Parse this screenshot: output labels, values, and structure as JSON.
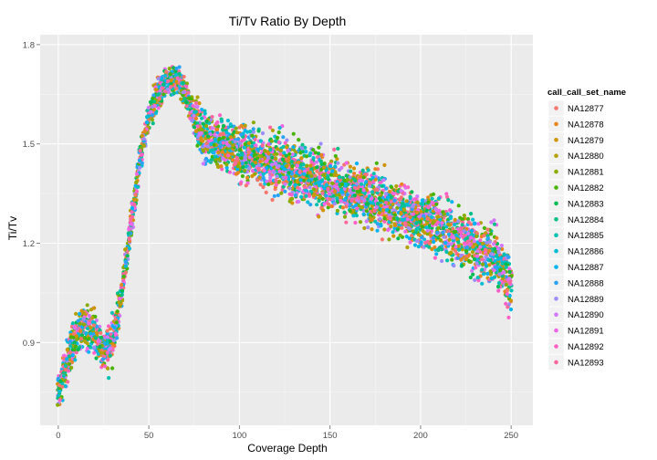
{
  "chart_data": {
    "type": "scatter",
    "title": "Ti/Tv Ratio By Depth",
    "xlabel": "Coverage Depth",
    "ylabel": "Ti/Tv",
    "xlim": [
      -10,
      262
    ],
    "ylim": [
      0.65,
      1.83
    ],
    "xticks": [
      0,
      50,
      100,
      150,
      200,
      250
    ],
    "xtick_labels": [
      "0",
      "50",
      "100",
      "150",
      "200",
      "250"
    ],
    "yticks": [
      0.9,
      1.2,
      1.5,
      1.8
    ],
    "ytick_labels": [
      "0.9",
      "1.2",
      "1.5",
      "1.8"
    ],
    "grid": true,
    "legend_position": "right",
    "legend_title": "call_call_set_name",
    "series": [
      {
        "name": "NA12877",
        "color": "#F8766D"
      },
      {
        "name": "NA12878",
        "color": "#E7851E"
      },
      {
        "name": "NA12879",
        "color": "#D09400"
      },
      {
        "name": "NA12880",
        "color": "#B2A100"
      },
      {
        "name": "NA12881",
        "color": "#89AC00"
      },
      {
        "name": "NA12882",
        "color": "#45B500"
      },
      {
        "name": "NA12883",
        "color": "#00BC51"
      },
      {
        "name": "NA12884",
        "color": "#00C087"
      },
      {
        "name": "NA12885",
        "color": "#00C0B2"
      },
      {
        "name": "NA12886",
        "color": "#00BCD6"
      },
      {
        "name": "NA12887",
        "color": "#00B3F2"
      },
      {
        "name": "NA12888",
        "color": "#29A3FF"
      },
      {
        "name": "NA12889",
        "color": "#9C8DFF"
      },
      {
        "name": "NA12890",
        "color": "#D277FF"
      },
      {
        "name": "NA12891",
        "color": "#F166E8"
      },
      {
        "name": "NA12892",
        "color": "#FF61C7"
      },
      {
        "name": "NA12893",
        "color": "#FF689E"
      }
    ],
    "trend": {
      "x": [
        0,
        5,
        10,
        15,
        20,
        25,
        30,
        35,
        40,
        45,
        50,
        55,
        60,
        65,
        70,
        75,
        80,
        90,
        100,
        125,
        150,
        175,
        200,
        225,
        240,
        250
      ],
      "y": [
        0.75,
        0.85,
        0.92,
        0.95,
        0.93,
        0.88,
        0.9,
        1.05,
        1.25,
        1.45,
        1.58,
        1.65,
        1.69,
        1.7,
        1.66,
        1.58,
        1.52,
        1.5,
        1.48,
        1.43,
        1.38,
        1.33,
        1.27,
        1.21,
        1.16,
        1.07
      ]
    }
  }
}
